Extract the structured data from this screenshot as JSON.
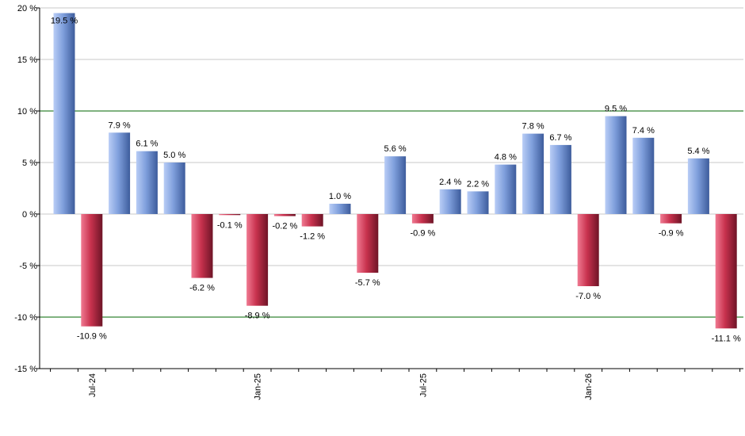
{
  "chart_data": {
    "type": "bar",
    "title": "",
    "xlabel": "",
    "ylabel": "",
    "ylim": [
      -15,
      20
    ],
    "y_ticks": [
      -15,
      -10,
      -5,
      0,
      5,
      10,
      15,
      20
    ],
    "y_tick_labels": [
      "-15 %",
      "-10 %",
      "-5 %",
      "0 %",
      "5 %",
      "10 %",
      "15 %",
      "20 %"
    ],
    "reference_lines": [
      10,
      -10
    ],
    "grid": true,
    "legend": "none",
    "x_tick_labels": [
      {
        "label": "Jul-24",
        "index": 1
      },
      {
        "label": "Jan-25",
        "index": 7
      },
      {
        "label": "Jul-25",
        "index": 13
      },
      {
        "label": "Jan-26",
        "index": 19
      }
    ],
    "values": [
      19.5,
      -10.9,
      7.9,
      6.1,
      5.0,
      -6.2,
      -0.1,
      -8.9,
      -0.2,
      -1.2,
      1.0,
      -5.7,
      5.6,
      -0.9,
      2.4,
      2.2,
      4.8,
      7.8,
      6.7,
      -7.0,
      9.5,
      7.4,
      -0.9,
      5.4,
      -11.1
    ],
    "data_labels": [
      "19.5 %",
      "-10.9 %",
      "7.9 %",
      "6.1 %",
      "5.0 %",
      "-6.2 %",
      "-0.1 %",
      "-8.9 %",
      "-0.2 %",
      "-1.2 %",
      "1.0 %",
      "-5.7 %",
      "5.6 %",
      "-0.9 %",
      "2.4 %",
      "2.2 %",
      "4.8 %",
      "7.8 %",
      "6.7 %",
      "-7.0 %",
      "9.5 %",
      "7.4 %",
      "-0.9 %",
      "5.4 %",
      "-11.1 %"
    ],
    "colors": {
      "positive": "#7f9fdc",
      "negative": "#c8324e",
      "grid": "#c8c8c8",
      "reference_line": "#006400",
      "axis": "#000000"
    }
  }
}
